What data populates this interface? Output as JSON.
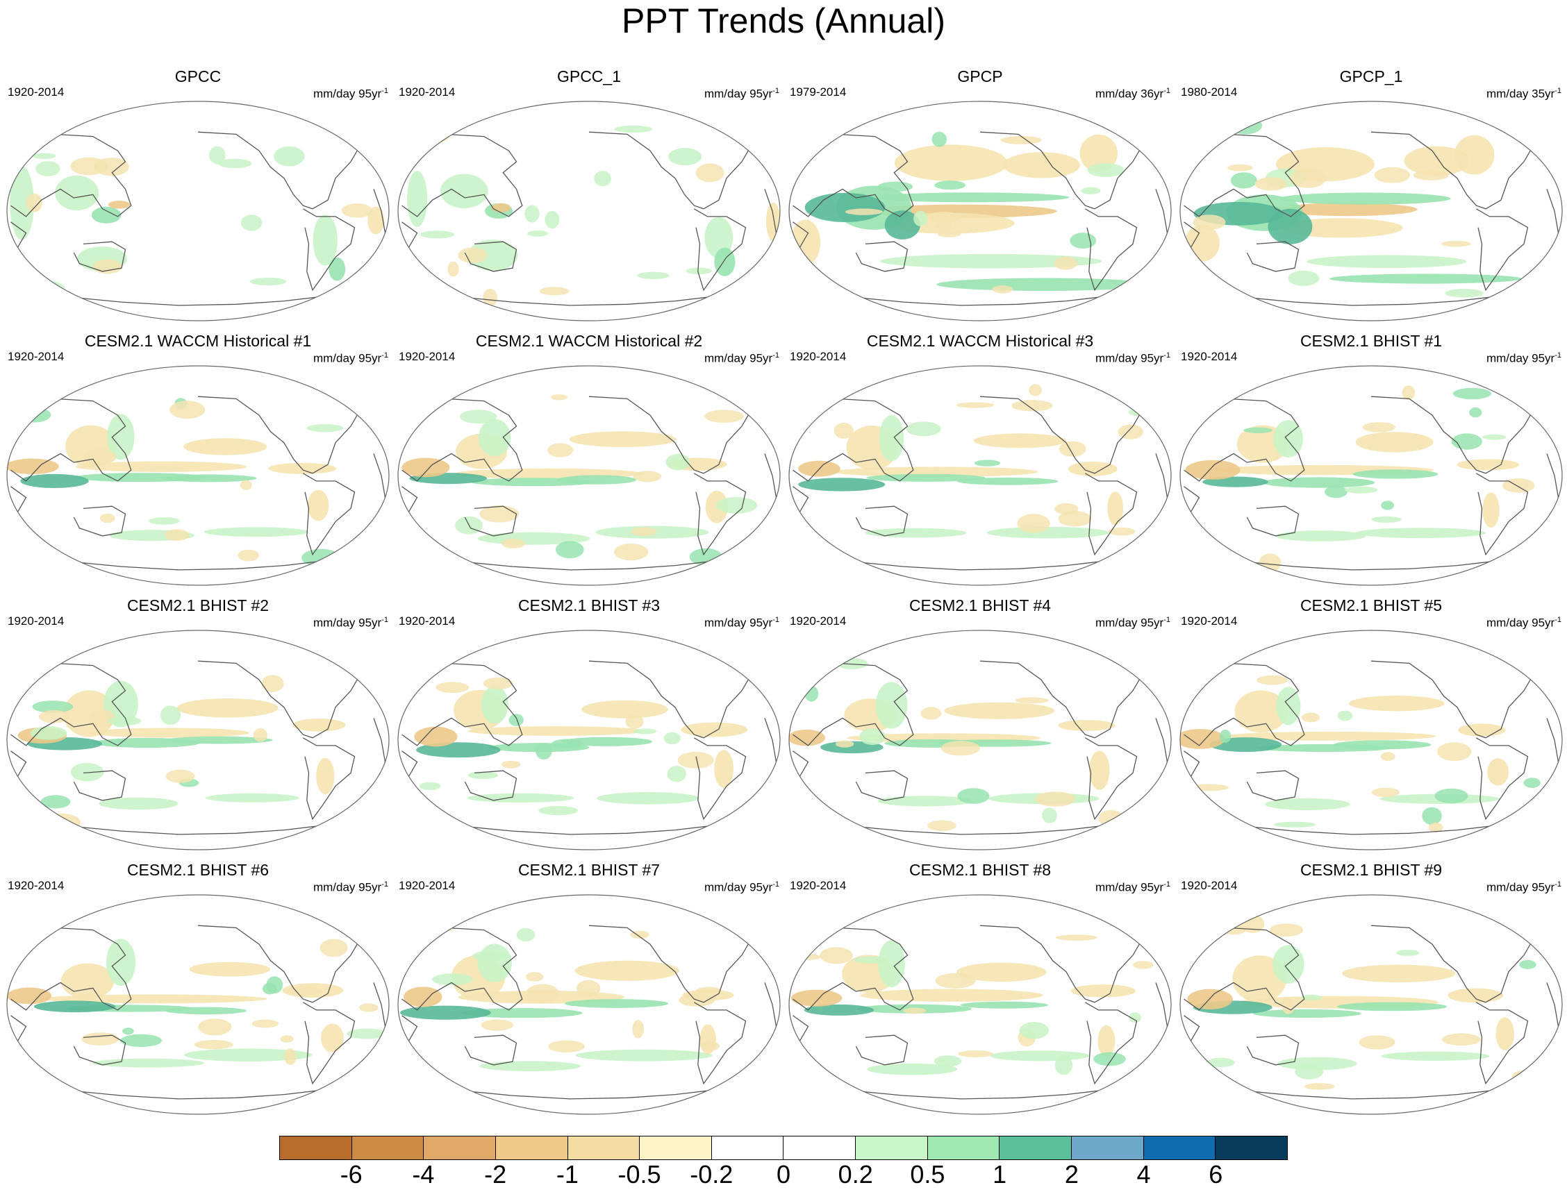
{
  "title": "PPT Trends (Annual)",
  "panels": [
    {
      "title": "GPCC",
      "period": "1920-2014",
      "units": "mm/day 95yr",
      "units_sup": "-1",
      "style": "land"
    },
    {
      "title": "GPCC_1",
      "period": "1920-2014",
      "units": "mm/day 95yr",
      "units_sup": "-1",
      "style": "land"
    },
    {
      "title": "GPCP",
      "period": "1979-2014",
      "units": "mm/day 36yr",
      "units_sup": "-1",
      "style": "obs"
    },
    {
      "title": "GPCP_1",
      "period": "1980-2014",
      "units": "mm/day 35yr",
      "units_sup": "-1",
      "style": "obs"
    },
    {
      "title": "CESM2.1 WACCM Historical #1",
      "period": "1920-2014",
      "units": "mm/day 95yr",
      "units_sup": "-1",
      "style": "model"
    },
    {
      "title": "CESM2.1 WACCM Historical #2",
      "period": "1920-2014",
      "units": "mm/day 95yr",
      "units_sup": "-1",
      "style": "model"
    },
    {
      "title": "CESM2.1 WACCM Historical #3",
      "period": "1920-2014",
      "units": "mm/day 95yr",
      "units_sup": "-1",
      "style": "model"
    },
    {
      "title": "CESM2.1 BHIST #1",
      "period": "1920-2014",
      "units": "mm/day 95yr",
      "units_sup": "-1",
      "style": "model"
    },
    {
      "title": "CESM2.1 BHIST #2",
      "period": "1920-2014",
      "units": "mm/day 95yr",
      "units_sup": "-1",
      "style": "model"
    },
    {
      "title": "CESM2.1 BHIST #3",
      "period": "1920-2014",
      "units": "mm/day 95yr",
      "units_sup": "-1",
      "style": "model"
    },
    {
      "title": "CESM2.1 BHIST #4",
      "period": "1920-2014",
      "units": "mm/day 95yr",
      "units_sup": "-1",
      "style": "model"
    },
    {
      "title": "CESM2.1 BHIST #5",
      "period": "1920-2014",
      "units": "mm/day 95yr",
      "units_sup": "-1",
      "style": "model"
    },
    {
      "title": "CESM2.1 BHIST #6",
      "period": "1920-2014",
      "units": "mm/day 95yr",
      "units_sup": "-1",
      "style": "model"
    },
    {
      "title": "CESM2.1 BHIST #7",
      "period": "1920-2014",
      "units": "mm/day 95yr",
      "units_sup": "-1",
      "style": "model"
    },
    {
      "title": "CESM2.1 BHIST #8",
      "period": "1920-2014",
      "units": "mm/day 95yr",
      "units_sup": "-1",
      "style": "model"
    },
    {
      "title": "CESM2.1 BHIST #9",
      "period": "1920-2014",
      "units": "mm/day 95yr",
      "units_sup": "-1",
      "style": "model"
    }
  ],
  "colorbar": {
    "colors": [
      "#b86d2c",
      "#cd8a45",
      "#e0a866",
      "#f0c887",
      "#f4dda3",
      "#fdf3c4",
      "#ffffff",
      "#ffffff",
      "#c8f6c9",
      "#9ee8b1",
      "#5cbf9b",
      "#6ea9c9",
      "#0f6cae",
      "#073b5c"
    ],
    "labels": [
      "-6",
      "-4",
      "-2",
      "-1",
      "-0.5",
      "-0.2",
      "0",
      "0.2",
      "0.5",
      "1",
      "2",
      "4",
      "6"
    ]
  },
  "colors": {
    "dry_weak": "#f5e3b0",
    "dry_mid": "#ecc98a",
    "dry_strong": "#d7a062",
    "wet_weak": "#c8f3c6",
    "wet_mid": "#98e3b0",
    "wet_strong": "#58b898",
    "coastline": "#555555"
  }
}
